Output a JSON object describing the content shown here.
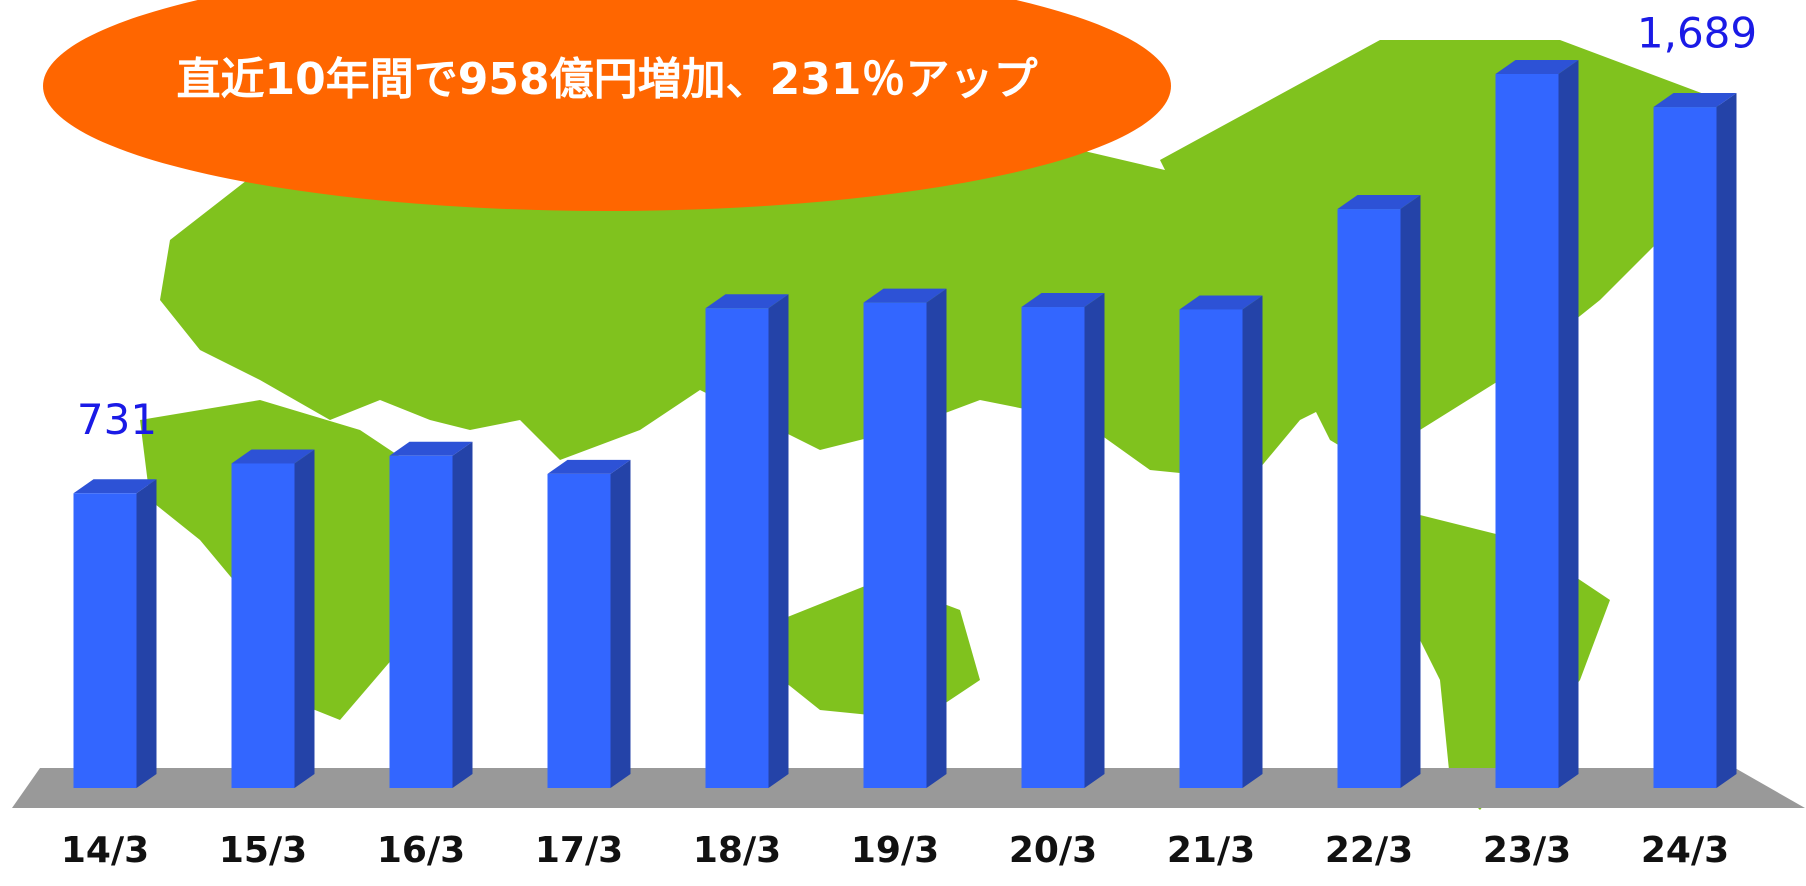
{
  "chart_data": {
    "type": "bar",
    "title": "直近10年間で958億円増加、231％アップ",
    "categories": [
      "14/3",
      "15/3",
      "16/3",
      "17/3",
      "18/3",
      "19/3",
      "20/3",
      "21/3",
      "22/3",
      "23/3",
      "24/3"
    ],
    "values": [
      731,
      805,
      824,
      779,
      1190,
      1204,
      1193,
      1187,
      1436,
      1771,
      1689
    ],
    "value_labels": [
      "731",
      null,
      null,
      null,
      null,
      null,
      null,
      null,
      null,
      null,
      "1,689"
    ],
    "color": "#3366ff"
  }
}
